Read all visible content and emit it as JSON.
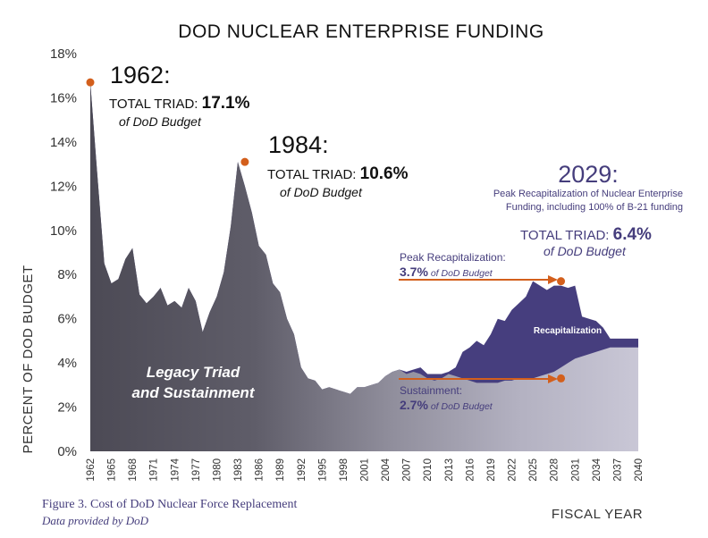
{
  "chart_data": {
    "type": "area",
    "title": "DOD NUCLEAR ENTERPRISE FUNDING",
    "ylabel": "PERCENT OF DOD BUDGET",
    "xlabel": "FISCAL YEAR",
    "y_ticks": [
      "0%",
      "2%",
      "4%",
      "6%",
      "8%",
      "10%",
      "12%",
      "14%",
      "16%",
      "18%"
    ],
    "ylim": [
      0,
      18
    ],
    "x_ticks": [
      "1962",
      "1965",
      "1968",
      "1971",
      "1974",
      "1977",
      "1980",
      "1983",
      "1986",
      "1989",
      "1992",
      "1995",
      "1998",
      "2001",
      "2004",
      "2007",
      "2010",
      "2013",
      "2016",
      "2019",
      "2022",
      "2025",
      "2028",
      "2031",
      "2034",
      "2037",
      "2040"
    ],
    "xlim": [
      1962,
      2040
    ],
    "grid": false,
    "x": [
      1962,
      1963,
      1964,
      1965,
      1966,
      1967,
      1968,
      1969,
      1970,
      1971,
      1972,
      1973,
      1974,
      1975,
      1976,
      1977,
      1978,
      1979,
      1980,
      1981,
      1982,
      1983,
      1984,
      1985,
      1986,
      1987,
      1988,
      1989,
      1990,
      1991,
      1992,
      1993,
      1994,
      1995,
      1996,
      1997,
      1998,
      1999,
      2000,
      2001,
      2002,
      2003,
      2004,
      2005,
      2006,
      2007,
      2008,
      2009,
      2010,
      2011,
      2012,
      2013,
      2014,
      2015,
      2016,
      2017,
      2018,
      2019,
      2020,
      2021,
      2022,
      2023,
      2024,
      2025,
      2026,
      2027,
      2028,
      2029,
      2030,
      2031,
      2032,
      2033,
      2034,
      2035,
      2036,
      2037,
      2038,
      2039,
      2040
    ],
    "series": [
      {
        "name": "Legacy Triad and Sustainment",
        "values": [
          16.7,
          12.5,
          8.5,
          7.6,
          7.8,
          8.7,
          9.2,
          7.1,
          6.7,
          7.0,
          7.4,
          6.6,
          6.8,
          6.5,
          7.4,
          6.8,
          5.4,
          6.3,
          7.0,
          8.1,
          10.2,
          13.1,
          12.0,
          10.8,
          9.3,
          8.9,
          7.6,
          7.2,
          6.0,
          5.3,
          3.8,
          3.3,
          3.2,
          2.8,
          2.9,
          2.8,
          2.7,
          2.6,
          2.9,
          2.9,
          3.0,
          3.1,
          3.4,
          3.6,
          3.7,
          3.5,
          3.6,
          3.5,
          3.3,
          3.2,
          3.3,
          3.5,
          3.4,
          3.3,
          3.2,
          3.1,
          3.1,
          3.1,
          3.1,
          3.2,
          3.2,
          3.3,
          3.3,
          3.3,
          3.4,
          3.5,
          3.6,
          3.8,
          4.0,
          4.2,
          4.3,
          4.4,
          4.5,
          4.6,
          4.7,
          4.7,
          4.7,
          4.7,
          4.7
        ]
      },
      {
        "name": "Recapitalization",
        "values": [
          16.7,
          12.5,
          8.5,
          7.6,
          7.8,
          8.7,
          9.2,
          7.1,
          6.7,
          7.0,
          7.4,
          6.6,
          6.8,
          6.5,
          7.4,
          6.8,
          5.4,
          6.3,
          7.0,
          8.1,
          10.2,
          13.1,
          12.0,
          10.8,
          9.3,
          8.9,
          7.6,
          7.2,
          6.0,
          5.3,
          3.8,
          3.3,
          3.2,
          2.8,
          2.9,
          2.8,
          2.7,
          2.6,
          2.9,
          2.9,
          3.0,
          3.1,
          3.4,
          3.6,
          3.7,
          3.6,
          3.7,
          3.8,
          3.5,
          3.5,
          3.5,
          3.6,
          3.8,
          4.5,
          4.7,
          5.0,
          4.8,
          5.3,
          6.0,
          5.9,
          6.4,
          6.7,
          7.0,
          7.7,
          7.5,
          7.3,
          7.5,
          7.5,
          7.4,
          7.5,
          6.1,
          6.0,
          5.9,
          5.6,
          5.1,
          5.1,
          5.1,
          5.1,
          5.1
        ]
      }
    ],
    "annotations": {
      "a1962": {
        "year": "1962:",
        "label": "TOTAL TRIAD: ",
        "pct": "17.1%",
        "sub": "of DoD Budget"
      },
      "a1984": {
        "year": "1984:",
        "label": "TOTAL TRIAD: ",
        "pct": "10.6%",
        "sub": "of DoD Budget"
      },
      "a2029": {
        "year": "2029:",
        "line1": "Peak Recapitalization of Nuclear Enterprise",
        "line2": "Funding, including 100% of B-21 funding",
        "label": "TOTAL TRIAD: ",
        "pct": "6.4%",
        "sub": "of DoD Budget"
      },
      "peak_recap": {
        "label": "Peak Recapitalization:",
        "pct": "3.7%",
        "sub": " of DoD Budget"
      },
      "sustainment": {
        "label": "Sustainment:",
        "pct": "2.7%",
        "sub": " of DoD Budget"
      },
      "legacy_line1": "Legacy Triad",
      "legacy_line2": "and Sustainment",
      "recap_label": "Recapitalization"
    },
    "points": [
      {
        "x": 1962,
        "y": 16.7
      },
      {
        "x": 1984,
        "y": 13.1
      },
      {
        "x": 2029,
        "y": 7.7
      },
      {
        "x": 2029,
        "y": 3.3
      }
    ],
    "colors": {
      "legacy_dark": "#4c4a55",
      "legacy_light": "#c6c4d2",
      "recap": "#463e7e",
      "marker": "#d35f1c",
      "navy_text": "#453d7c"
    }
  },
  "caption": {
    "line1": "Figure 3. Cost of DoD Nuclear Force Replacement",
    "line2": "Data provided by DoD"
  }
}
